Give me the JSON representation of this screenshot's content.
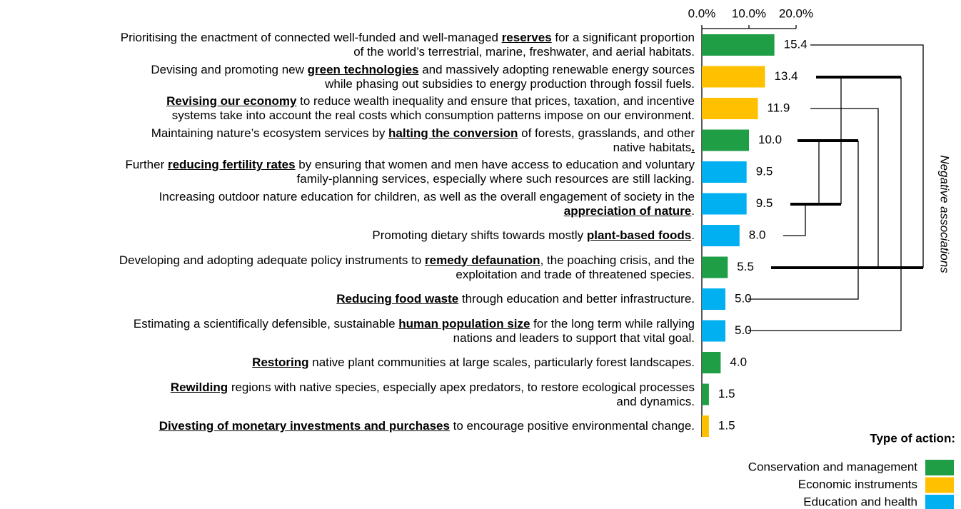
{
  "chart_data": {
    "type": "bar",
    "orientation": "horizontal",
    "categories": [
      [
        "Prioritising the enactment of connected well-funded and well-managed ",
        {
          "bold": "reserves"
        },
        " for a significant proportion\nof the world’s terrestrial, marine, freshwater, and aerial habitats."
      ],
      [
        "Devising and promoting new ",
        {
          "bold": "green technologies"
        },
        " and massively adopting renewable energy sources\nwhile phasing out subsidies to energy production through fossil fuels."
      ],
      [
        {
          "bold": "Revising our economy"
        },
        " to reduce wealth inequality and ensure that prices, taxation, and incentive\nsystems take into account the real costs which consumption patterns impose on our environment."
      ],
      [
        "Maintaining nature’s ecosystem services by ",
        {
          "bold": "halting the conversion"
        },
        " of forests, grasslands, and other\nnative habitats",
        {
          "bold": "."
        }
      ],
      [
        "Further ",
        {
          "bold": "reducing fertility rates"
        },
        " by ensuring that women and men have access to education and voluntary\nfamily-planning services, especially where such resources are still lacking."
      ],
      [
        "Increasing outdoor nature education for children, as well as the overall engagement of society in the\n",
        {
          "bold": "appreciation of nature"
        },
        "."
      ],
      [
        "Promoting dietary shifts towards mostly ",
        {
          "bold": "plant-based foods"
        },
        "."
      ],
      [
        "Developing and adopting adequate policy instruments to ",
        {
          "bold": "remedy defaunation"
        },
        ", the poaching crisis, and the\nexploitation and trade of threatened species."
      ],
      [
        {
          "bold": "Reducing food waste"
        },
        " through education and better infrastructure."
      ],
      [
        "Estimating a scientifically defensible, sustainable ",
        {
          "bold": "human population size"
        },
        " for the long term while rallying\nnations and leaders to support that vital goal."
      ],
      [
        {
          "bold": "Restoring"
        },
        " native plant communities at large scales, particularly forest landscapes."
      ],
      [
        {
          "bold": "Rewilding"
        },
        " regions with native species, especially apex predators, to restore ecological processes\nand dynamics."
      ],
      [
        {
          "bold": "Divesting of monetary investments and purchases"
        },
        " to encourage positive environmental change."
      ]
    ],
    "values": [
      15.4,
      13.4,
      11.9,
      10.0,
      9.5,
      9.5,
      8.0,
      5.5,
      5.0,
      5.0,
      4.0,
      1.5,
      1.5
    ],
    "value_labels": [
      "15.4",
      "13.4",
      "11.9",
      "10.0",
      "9.5",
      "9.5",
      "8.0",
      "5.5",
      "5.0",
      "5.0",
      "4.0",
      "1.5",
      "1.5"
    ],
    "bar_colors": [
      "#1f9e45",
      "#ffc000",
      "#ffc000",
      "#1f9e45",
      "#00b0f0",
      "#00b0f0",
      "#00b0f0",
      "#1f9e45",
      "#00b0f0",
      "#00b0f0",
      "#1f9e45",
      "#1f9e45",
      "#ffc000"
    ],
    "xlim": [
      0,
      20
    ],
    "xticks": [
      {
        "value": 0,
        "label": "0.0%"
      },
      {
        "value": 10,
        "label": "10.0%"
      },
      {
        "value": 20,
        "label": "20.0%"
      }
    ],
    "annotation": "Negative associations",
    "legend": {
      "title": "Type of action:",
      "items": [
        {
          "name": "Conservation and management",
          "color": "#1f9e45"
        },
        {
          "name": "Economic instruments",
          "color": "#ffc000"
        },
        {
          "name": "Education and health",
          "color": "#00b0f0"
        }
      ]
    }
  }
}
